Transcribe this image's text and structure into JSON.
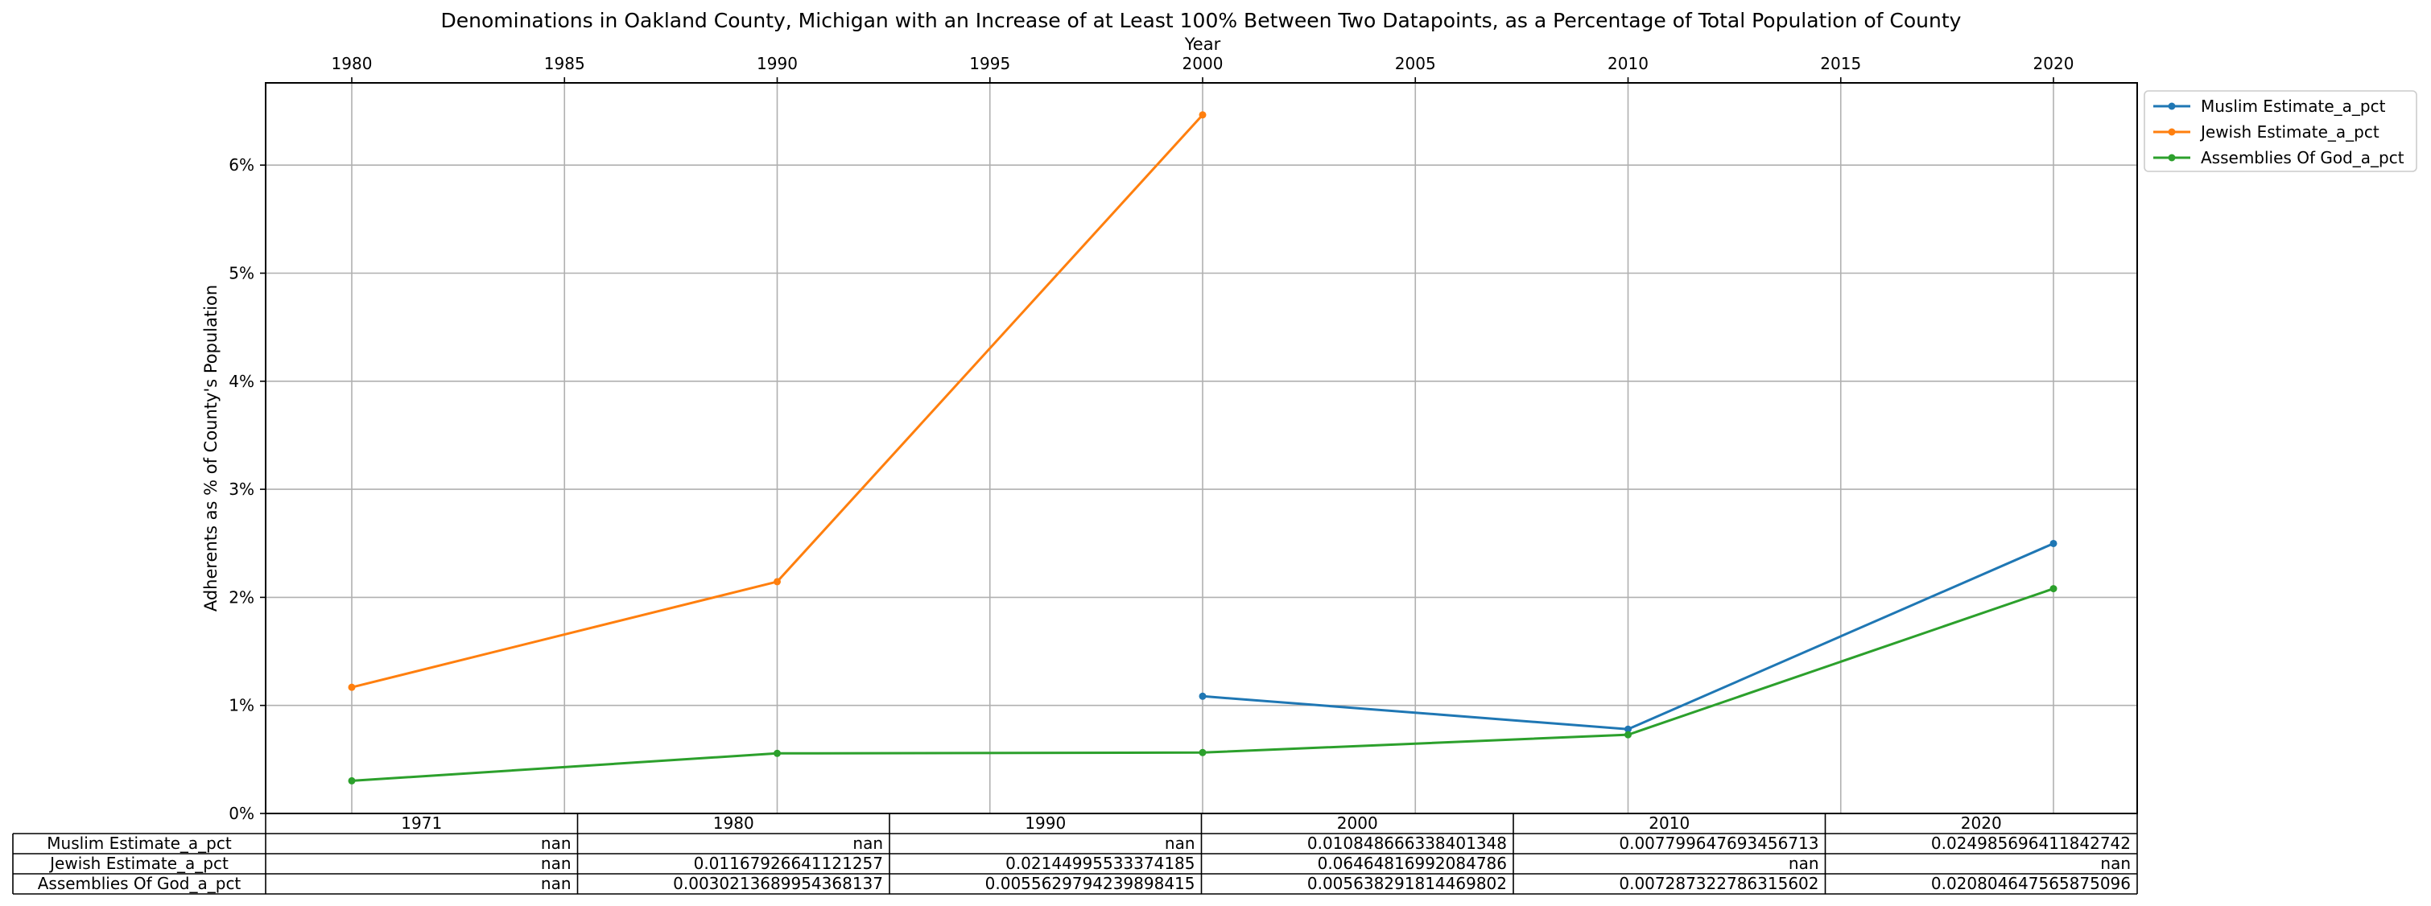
{
  "chart_data": {
    "type": "line",
    "title": "Denominations in Oakland County, Michigan with an Increase of at Least 100% Between Two Datapoints, as a Percentage of Total Population of County",
    "xlabel": "Year",
    "ylabel": "Adherents as % of County's Population",
    "xlim": [
      1978,
      2020
    ],
    "ylim": [
      0,
      0.068
    ],
    "x_ticks": [
      1980,
      1985,
      1990,
      1995,
      2000,
      2005,
      2010,
      2015,
      2020
    ],
    "x_tick_labels": [
      "1980",
      "1985",
      "1990",
      "1995",
      "2000",
      "2005",
      "2010",
      "2015",
      "2020"
    ],
    "y_ticks": [
      0,
      0.01,
      0.02,
      0.03,
      0.04,
      0.05,
      0.06
    ],
    "y_tick_labels": [
      "0%",
      "1%",
      "2%",
      "3%",
      "4%",
      "5%",
      "6%"
    ],
    "grid": true,
    "x_axis_position": "top",
    "legend_position": "outside-top-right",
    "series": [
      {
        "name": "Muslim Estimate_a_pct",
        "color": "#1f77b4",
        "points": [
          [
            2000,
            0.010848666338401348
          ],
          [
            2010,
            0.007799647693456713
          ],
          [
            2020,
            0.024985696411842742
          ]
        ]
      },
      {
        "name": "Jewish Estimate_a_pct",
        "color": "#ff7f0e",
        "points": [
          [
            1980,
            0.01167926641121257
          ],
          [
            1990,
            0.02144995533374185
          ],
          [
            2000,
            0.06464816992084786
          ]
        ]
      },
      {
        "name": "Assemblies Of God_a_pct",
        "color": "#2ca02c",
        "points": [
          [
            1980,
            0.0030213689954368137
          ],
          [
            1990,
            0.0055629794239898415
          ],
          [
            2000,
            0.005638291814469802
          ],
          [
            2010,
            0.007287322786315602
          ],
          [
            2020,
            0.020804647565875096
          ]
        ]
      }
    ],
    "table": {
      "columns": [
        "1971",
        "1980",
        "1990",
        "2000",
        "2010",
        "2020"
      ],
      "rows": [
        {
          "label": "Muslim Estimate_a_pct",
          "cells": [
            "nan",
            "nan",
            "nan",
            "0.010848666338401348",
            "0.007799647693456713",
            "0.024985696411842742"
          ]
        },
        {
          "label": "Jewish Estimate_a_pct",
          "cells": [
            "nan",
            "0.01167926641121257",
            "0.02144995533374185",
            "0.06464816992084786",
            "nan",
            "nan"
          ]
        },
        {
          "label": "Assemblies Of God_a_pct",
          "cells": [
            "nan",
            "0.0030213689954368137",
            "0.0055629794239898415",
            "0.005638291814469802",
            "0.007287322786315602",
            "0.020804647565875096"
          ]
        }
      ]
    }
  }
}
